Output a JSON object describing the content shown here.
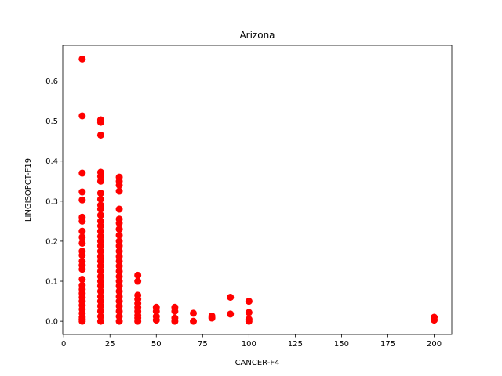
{
  "chart_data": {
    "type": "scatter",
    "title": "Arizona",
    "xlabel": "CANCER-F4",
    "ylabel": "LINGISOPCT-F19",
    "xlim": [
      -0.5,
      209.5
    ],
    "ylim": [
      -0.033,
      0.689
    ],
    "xticks": [
      0,
      25,
      50,
      75,
      100,
      125,
      150,
      175,
      200
    ],
    "yticks": [
      0.0,
      0.1,
      0.2,
      0.3,
      0.4,
      0.5,
      0.6
    ],
    "xtick_labels": [
      "0",
      "25",
      "50",
      "75",
      "100",
      "125",
      "150",
      "175",
      "200"
    ],
    "ytick_labels": [
      "0.0",
      "0.1",
      "0.2",
      "0.3",
      "0.4",
      "0.5",
      "0.6"
    ],
    "grid": false,
    "marker_color": "#ff0000",
    "series": [
      {
        "points": [
          [
            10,
            0.655
          ],
          [
            10,
            0.513
          ],
          [
            10,
            0.37
          ],
          [
            10,
            0.323
          ],
          [
            10,
            0.303
          ],
          [
            10,
            0.26
          ],
          [
            10,
            0.25
          ],
          [
            10,
            0.225
          ],
          [
            10,
            0.21
          ],
          [
            10,
            0.195
          ],
          [
            10,
            0.175
          ],
          [
            10,
            0.165
          ],
          [
            10,
            0.15
          ],
          [
            10,
            0.14
          ],
          [
            10,
            0.13
          ],
          [
            10,
            0.105
          ],
          [
            10,
            0.09
          ],
          [
            10,
            0.08
          ],
          [
            10,
            0.07
          ],
          [
            10,
            0.06
          ],
          [
            10,
            0.05
          ],
          [
            10,
            0.04
          ],
          [
            10,
            0.03
          ],
          [
            10,
            0.02
          ],
          [
            10,
            0.01
          ],
          [
            10,
            0.005
          ],
          [
            10,
            0.0
          ],
          [
            20,
            0.503
          ],
          [
            20,
            0.497
          ],
          [
            20,
            0.465
          ],
          [
            20,
            0.372
          ],
          [
            20,
            0.362
          ],
          [
            20,
            0.35
          ],
          [
            20,
            0.32
          ],
          [
            20,
            0.305
          ],
          [
            20,
            0.29
          ],
          [
            20,
            0.28
          ],
          [
            20,
            0.265
          ],
          [
            20,
            0.25
          ],
          [
            20,
            0.238
          ],
          [
            20,
            0.225
          ],
          [
            20,
            0.212
          ],
          [
            20,
            0.2
          ],
          [
            20,
            0.188
          ],
          [
            20,
            0.175
          ],
          [
            20,
            0.162
          ],
          [
            20,
            0.15
          ],
          [
            20,
            0.138
          ],
          [
            20,
            0.125
          ],
          [
            20,
            0.112
          ],
          [
            20,
            0.1
          ],
          [
            20,
            0.088
          ],
          [
            20,
            0.075
          ],
          [
            20,
            0.062
          ],
          [
            20,
            0.05
          ],
          [
            20,
            0.038
          ],
          [
            20,
            0.025
          ],
          [
            20,
            0.012
          ],
          [
            20,
            0.0
          ],
          [
            30,
            0.36
          ],
          [
            30,
            0.35
          ],
          [
            30,
            0.34
          ],
          [
            30,
            0.325
          ],
          [
            30,
            0.28
          ],
          [
            30,
            0.255
          ],
          [
            30,
            0.245
          ],
          [
            30,
            0.23
          ],
          [
            30,
            0.215
          ],
          [
            30,
            0.2
          ],
          [
            30,
            0.188
          ],
          [
            30,
            0.175
          ],
          [
            30,
            0.162
          ],
          [
            30,
            0.15
          ],
          [
            30,
            0.138
          ],
          [
            30,
            0.125
          ],
          [
            30,
            0.112
          ],
          [
            30,
            0.1
          ],
          [
            30,
            0.088
          ],
          [
            30,
            0.075
          ],
          [
            30,
            0.062
          ],
          [
            30,
            0.05
          ],
          [
            30,
            0.038
          ],
          [
            30,
            0.025
          ],
          [
            30,
            0.012
          ],
          [
            30,
            0.0
          ],
          [
            40,
            0.115
          ],
          [
            40,
            0.1
          ],
          [
            40,
            0.065
          ],
          [
            40,
            0.055
          ],
          [
            40,
            0.045
          ],
          [
            40,
            0.035
          ],
          [
            40,
            0.025
          ],
          [
            40,
            0.015
          ],
          [
            40,
            0.008
          ],
          [
            40,
            0.0
          ],
          [
            50,
            0.035
          ],
          [
            50,
            0.025
          ],
          [
            50,
            0.012
          ],
          [
            50,
            0.003
          ],
          [
            60,
            0.035
          ],
          [
            60,
            0.025
          ],
          [
            60,
            0.008
          ],
          [
            60,
            0.0
          ],
          [
            70,
            0.02
          ],
          [
            70,
            0.0
          ],
          [
            80,
            0.013
          ],
          [
            80,
            0.008
          ],
          [
            90,
            0.06
          ],
          [
            90,
            0.018
          ],
          [
            100,
            0.05
          ],
          [
            100,
            0.022
          ],
          [
            100,
            0.005
          ],
          [
            100,
            0.0
          ],
          [
            200,
            0.01
          ],
          [
            200,
            0.003
          ]
        ]
      }
    ]
  }
}
